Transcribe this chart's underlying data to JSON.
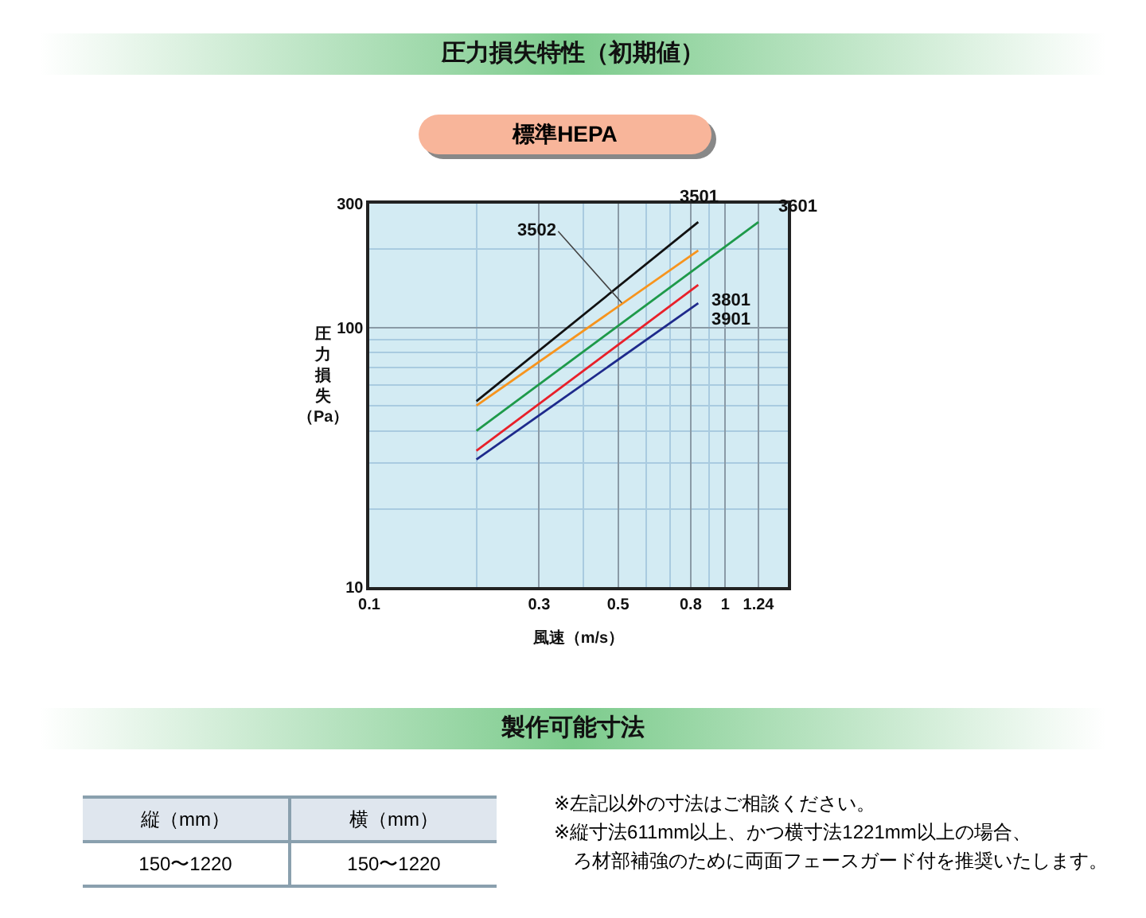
{
  "chart_data": [
    {
      "type": "line",
      "title": "圧力損失特性（初期値）",
      "subtitle": "標準HEPA",
      "xlabel": "風速（m/s）",
      "ylabel": "圧力損失（Pa）",
      "log": "xy",
      "xlim": [
        0.1,
        1.5
      ],
      "ylim": [
        10,
        300
      ],
      "xticks": [
        0.1,
        {
          "value": 0.2,
          "label": null
        },
        0.3,
        {
          "value": 0.4,
          "label": null
        },
        0.5,
        {
          "value": 0.6,
          "label": null
        },
        {
          "value": 0.7,
          "label": null
        },
        0.8,
        {
          "value": 0.9,
          "label": null
        },
        1,
        1.24
      ],
      "yticks": [
        10,
        {
          "value": 20,
          "label": null
        },
        {
          "value": 30,
          "label": null
        },
        {
          "value": 40,
          "label": null
        },
        {
          "value": 50,
          "label": null
        },
        {
          "value": 60,
          "label": null
        },
        {
          "value": 70,
          "label": null
        },
        {
          "value": 80,
          "label": null
        },
        {
          "value": 90,
          "label": null
        },
        100,
        {
          "value": 200,
          "label": null
        },
        300
      ],
      "grid": true,
      "legend": false,
      "series": [
        {
          "name": "3501",
          "color": "#111111",
          "x": [
            0.2,
            0.84
          ],
          "values": [
            52,
            255
          ]
        },
        {
          "name": "3502",
          "color": "#f7941d",
          "x": [
            0.2,
            0.84
          ],
          "values": [
            50,
            198
          ]
        },
        {
          "name": "3601",
          "color": "#1e9a4a",
          "x": [
            0.2,
            1.24
          ],
          "values": [
            40,
            255
          ]
        },
        {
          "name": "3801",
          "color": "#e8202a",
          "x": [
            0.2,
            0.84
          ],
          "values": [
            33.5,
            146
          ]
        },
        {
          "name": "3901",
          "color": "#1e2a8c",
          "x": [
            0.2,
            0.84
          ],
          "values": [
            31,
            124
          ]
        }
      ]
    },
    {
      "type": "other",
      "title": "製作可能寸法",
      "categories": [
        "縦（mm）",
        "横（mm）"
      ],
      "annotations": [
        "150〜1220",
        "150〜1220",
        "※左記以外の寸法はご相談ください。",
        "※縦寸法611mm以上、かつ横寸法1221mm以上の場合、",
        "ろ材部補強のために両面フェースガード付を推奨いたします。"
      ]
    }
  ]
}
